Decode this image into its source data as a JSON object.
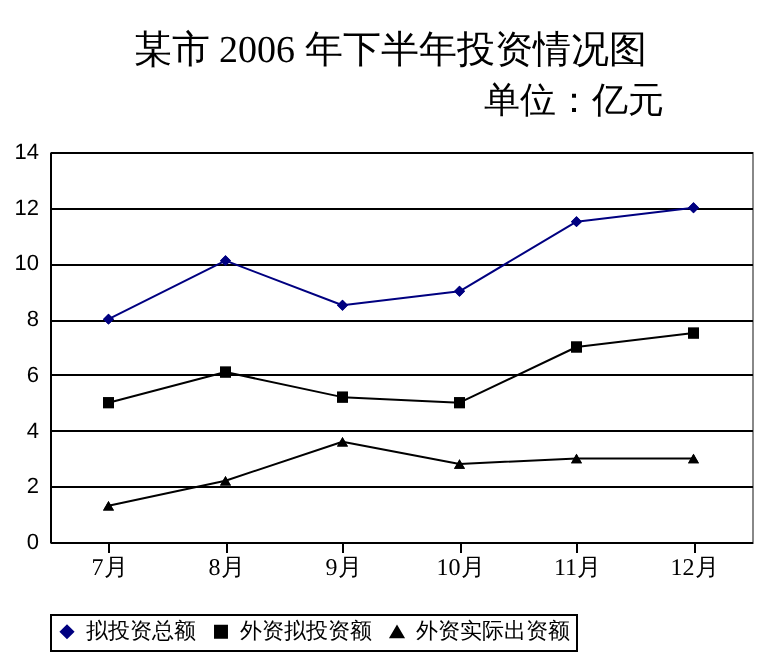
{
  "chart_data": {
    "type": "line",
    "title": "某市 2006 年下半年投资情况图",
    "subtitle": "单位：亿元",
    "categories": [
      "7月",
      "8月",
      "9月",
      "10月",
      "11月",
      "12月"
    ],
    "series": [
      {
        "name": "拟投资总额",
        "color": "#000080",
        "marker": "diamond",
        "values": [
          8,
          10.1,
          8.5,
          9,
          11.5,
          12
        ]
      },
      {
        "name": "外资拟投资额",
        "color": "#000000",
        "marker": "square",
        "values": [
          5,
          6.1,
          5.2,
          5,
          7,
          7.5
        ]
      },
      {
        "name": "外资实际出资额",
        "color": "#000000",
        "marker": "triangle",
        "values": [
          1.3,
          2.2,
          3.6,
          2.8,
          3,
          3
        ]
      }
    ],
    "ylim": [
      0,
      14
    ],
    "yticks": [
      0,
      2,
      4,
      6,
      8,
      10,
      12,
      14
    ],
    "grid": "y",
    "legend": "bottom"
  }
}
